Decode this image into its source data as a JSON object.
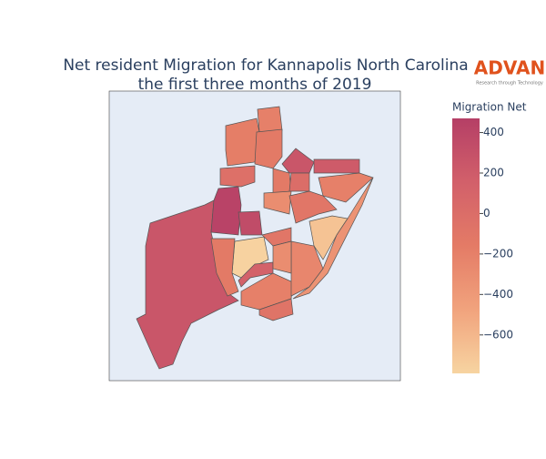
{
  "chart_data": {
    "type": "choropleth",
    "title": [
      "Net resident Migration for Kannapolis North Carolina",
      "the first three months of 2019"
    ],
    "logo": {
      "name": "ADVAN",
      "tagline": "Research through Technology"
    },
    "colorbar_title": "Migration Net",
    "zlim": [
      -790,
      470
    ],
    "zticks": [
      {
        "value": -600,
        "label": "−600"
      },
      {
        "value": -400,
        "label": "−400"
      },
      {
        "value": -200,
        "label": "−200"
      },
      0,
      200,
      400
    ],
    "colorscale": [
      "#f7d4a1",
      "#f1a37d",
      "#e47b66",
      "#d2606a",
      "#b53f66"
    ],
    "values": [
      250,
      430,
      350,
      -780,
      130,
      -150,
      -200,
      -80,
      -200,
      -180,
      -150,
      -30,
      250,
      200,
      -150,
      -300,
      0,
      -200,
      -100,
      -680,
      -250,
      -100,
      -300,
      -350
    ]
  }
}
